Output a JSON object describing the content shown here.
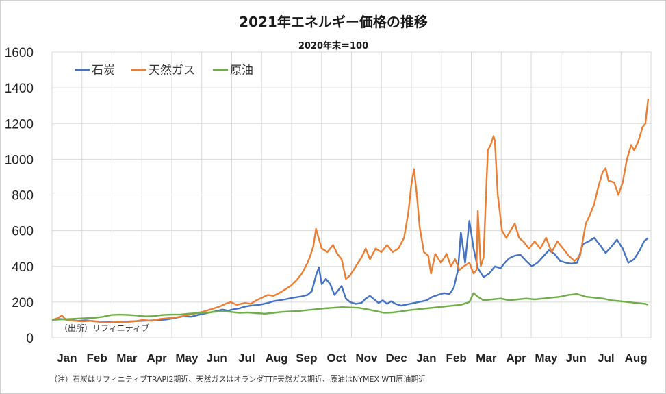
{
  "chart_data": {
    "type": "line",
    "title": "2021年エネルギー価格の推移",
    "subtitle": "2020年末＝100",
    "source": "（出所）リフィニティブ",
    "note": "（注）石炭はリフィニティブTRAPI2期近、天然ガスはオランダTTF天然ガス期近、原油はNYMEX WTI原油期近",
    "ylim": [
      0,
      1600
    ],
    "yticks": [
      "0",
      "200",
      "400",
      "600",
      "800",
      "1000",
      "1200",
      "1400",
      "1600"
    ],
    "xlim": [
      0,
      20
    ],
    "categories": [
      "Jan",
      "Feb",
      "Mar",
      "Apr",
      "May",
      "Jun",
      "Jul",
      "Aug",
      "Sep",
      "Oct",
      "Nov",
      "Dec",
      "Jan",
      "Feb",
      "Mar",
      "Apr",
      "May",
      "Jun",
      "Jul",
      "Aug"
    ],
    "grid": true,
    "legend_position": "top-left",
    "series": [
      {
        "name": "石炭",
        "color": "#4472C4",
        "points": [
          [
            0,
            100
          ],
          [
            0.3,
            105
          ],
          [
            0.6,
            100
          ],
          [
            0.9,
            95
          ],
          [
            1.2,
            98
          ],
          [
            1.5,
            92
          ],
          [
            1.8,
            90
          ],
          [
            2.2,
            88
          ],
          [
            2.5,
            90
          ],
          [
            2.8,
            92
          ],
          [
            3.2,
            95
          ],
          [
            3.6,
            98
          ],
          [
            4,
            102
          ],
          [
            4.3,
            110
          ],
          [
            4.6,
            120
          ],
          [
            4.9,
            118
          ],
          [
            5.2,
            130
          ],
          [
            5.5,
            140
          ],
          [
            5.8,
            150
          ],
          [
            6,
            158
          ],
          [
            6.2,
            152
          ],
          [
            6.4,
            160
          ],
          [
            6.6,
            165
          ],
          [
            6.8,
            175
          ],
          [
            7,
            180
          ],
          [
            7.3,
            185
          ],
          [
            7.6,
            195
          ],
          [
            7.8,
            205
          ],
          [
            8,
            210
          ],
          [
            8.2,
            215
          ],
          [
            8.5,
            225
          ],
          [
            8.8,
            232
          ],
          [
            9,
            240
          ],
          [
            9.15,
            260
          ],
          [
            9.3,
            350
          ],
          [
            9.4,
            395
          ],
          [
            9.5,
            300
          ],
          [
            9.65,
            330
          ],
          [
            9.8,
            300
          ],
          [
            9.95,
            240
          ],
          [
            10.05,
            260
          ],
          [
            10.2,
            290
          ],
          [
            10.35,
            220
          ],
          [
            10.5,
            200
          ],
          [
            10.7,
            190
          ],
          [
            10.9,
            195
          ],
          [
            11.05,
            220
          ],
          [
            11.2,
            235
          ],
          [
            11.35,
            215
          ],
          [
            11.5,
            195
          ],
          [
            11.65,
            210
          ],
          [
            11.8,
            190
          ],
          [
            11.95,
            205
          ],
          [
            12.1,
            190
          ],
          [
            12.3,
            180
          ],
          [
            12.6,
            190
          ],
          [
            12.9,
            200
          ],
          [
            13.2,
            210
          ],
          [
            13.4,
            230
          ],
          [
            13.6,
            240
          ],
          [
            13.8,
            250
          ],
          [
            14,
            245
          ],
          [
            14.15,
            280
          ],
          [
            14.3,
            380
          ],
          [
            14.4,
            590
          ],
          [
            14.55,
            420
          ],
          [
            14.7,
            655
          ],
          [
            14.85,
            500
          ],
          [
            15,
            390
          ],
          [
            15.2,
            340
          ],
          [
            15.4,
            360
          ],
          [
            15.6,
            400
          ],
          [
            15.8,
            390
          ],
          [
            15.95,
            420
          ],
          [
            16.1,
            445
          ],
          [
            16.3,
            460
          ],
          [
            16.5,
            465
          ],
          [
            16.7,
            430
          ],
          [
            16.9,
            400
          ],
          [
            17.1,
            420
          ],
          [
            17.3,
            455
          ],
          [
            17.5,
            490
          ],
          [
            17.7,
            470
          ],
          [
            17.9,
            430
          ],
          [
            18.1,
            420
          ],
          [
            18.3,
            415
          ],
          [
            18.5,
            420
          ],
          [
            18.7,
            525
          ],
          [
            18.9,
            540
          ],
          [
            19.1,
            560
          ],
          [
            19.3,
            520
          ],
          [
            19.5,
            475
          ],
          [
            19.7,
            510
          ],
          [
            19.9,
            550
          ],
          [
            20.1,
            500
          ],
          [
            20.3,
            420
          ],
          [
            20.5,
            440
          ],
          [
            20.7,
            490
          ],
          [
            20.85,
            540
          ],
          [
            21,
            560
          ]
        ]
      },
      {
        "name": "天然ガス",
        "color": "#ED7D31",
        "points": [
          [
            0,
            100
          ],
          [
            0.2,
            110
          ],
          [
            0.35,
            125
          ],
          [
            0.5,
            100
          ],
          [
            0.8,
            95
          ],
          [
            1.1,
            92
          ],
          [
            1.4,
            95
          ],
          [
            1.7,
            88
          ],
          [
            2,
            85
          ],
          [
            2.3,
            90
          ],
          [
            2.6,
            88
          ],
          [
            2.9,
            92
          ],
          [
            3.2,
            100
          ],
          [
            3.5,
            95
          ],
          [
            3.8,
            105
          ],
          [
            4.1,
            110
          ],
          [
            4.4,
            115
          ],
          [
            4.7,
            125
          ],
          [
            5,
            135
          ],
          [
            5.3,
            145
          ],
          [
            5.6,
            160
          ],
          [
            5.9,
            175
          ],
          [
            6.1,
            190
          ],
          [
            6.3,
            200
          ],
          [
            6.5,
            185
          ],
          [
            6.8,
            195
          ],
          [
            7,
            190
          ],
          [
            7.2,
            210
          ],
          [
            7.4,
            225
          ],
          [
            7.6,
            240
          ],
          [
            7.8,
            235
          ],
          [
            8,
            250
          ],
          [
            8.2,
            270
          ],
          [
            8.4,
            290
          ],
          [
            8.6,
            320
          ],
          [
            8.8,
            360
          ],
          [
            9,
            420
          ],
          [
            9.1,
            460
          ],
          [
            9.2,
            510
          ],
          [
            9.3,
            610
          ],
          [
            9.35,
            580
          ],
          [
            9.5,
            500
          ],
          [
            9.7,
            480
          ],
          [
            9.9,
            520
          ],
          [
            10.05,
            470
          ],
          [
            10.2,
            440
          ],
          [
            10.35,
            330
          ],
          [
            10.5,
            350
          ],
          [
            10.7,
            400
          ],
          [
            10.9,
            450
          ],
          [
            11.05,
            500
          ],
          [
            11.2,
            440
          ],
          [
            11.4,
            500
          ],
          [
            11.6,
            480
          ],
          [
            11.8,
            520
          ],
          [
            12,
            480
          ],
          [
            12.2,
            500
          ],
          [
            12.4,
            560
          ],
          [
            12.55,
            700
          ],
          [
            12.65,
            850
          ],
          [
            12.75,
            945
          ],
          [
            12.85,
            800
          ],
          [
            12.95,
            620
          ],
          [
            13.1,
            480
          ],
          [
            13.25,
            460
          ],
          [
            13.35,
            360
          ],
          [
            13.5,
            470
          ],
          [
            13.7,
            420
          ],
          [
            13.9,
            470
          ],
          [
            14.05,
            400
          ],
          [
            14.2,
            440
          ],
          [
            14.35,
            380
          ],
          [
            14.5,
            400
          ],
          [
            14.7,
            420
          ],
          [
            14.85,
            360
          ],
          [
            14.95,
            380
          ],
          [
            15,
            710
          ],
          [
            15.1,
            400
          ],
          [
            15.2,
            450
          ],
          [
            15.35,
            1050
          ],
          [
            15.45,
            1080
          ],
          [
            15.55,
            1130
          ],
          [
            15.6,
            1100
          ],
          [
            15.7,
            800
          ],
          [
            15.85,
            600
          ],
          [
            16,
            560
          ],
          [
            16.15,
            600
          ],
          [
            16.3,
            640
          ],
          [
            16.45,
            560
          ],
          [
            16.6,
            540
          ],
          [
            16.8,
            500
          ],
          [
            17,
            540
          ],
          [
            17.2,
            500
          ],
          [
            17.4,
            560
          ],
          [
            17.6,
            480
          ],
          [
            17.8,
            540
          ],
          [
            18,
            500
          ],
          [
            18.2,
            460
          ],
          [
            18.4,
            430
          ],
          [
            18.6,
            460
          ],
          [
            18.8,
            640
          ],
          [
            18.95,
            690
          ],
          [
            19.1,
            750
          ],
          [
            19.25,
            850
          ],
          [
            19.4,
            930
          ],
          [
            19.5,
            950
          ],
          [
            19.6,
            880
          ],
          [
            19.8,
            870
          ],
          [
            19.95,
            800
          ],
          [
            20.1,
            870
          ],
          [
            20.25,
            1000
          ],
          [
            20.4,
            1080
          ],
          [
            20.5,
            1050
          ],
          [
            20.65,
            1100
          ],
          [
            20.8,
            1180
          ],
          [
            20.9,
            1200
          ],
          [
            20.95,
            1270
          ],
          [
            21,
            1340
          ]
        ]
      },
      {
        "name": "原油",
        "color": "#70AD47",
        "points": [
          [
            0,
            100
          ],
          [
            0.3,
            103
          ],
          [
            0.6,
            105
          ],
          [
            0.9,
            108
          ],
          [
            1.2,
            110
          ],
          [
            1.5,
            112
          ],
          [
            1.8,
            118
          ],
          [
            2.1,
            128
          ],
          [
            2.4,
            130
          ],
          [
            2.7,
            128
          ],
          [
            3,
            125
          ],
          [
            3.3,
            120
          ],
          [
            3.6,
            122
          ],
          [
            3.9,
            128
          ],
          [
            4.2,
            130
          ],
          [
            4.5,
            130
          ],
          [
            4.8,
            135
          ],
          [
            5.1,
            138
          ],
          [
            5.4,
            140
          ],
          [
            5.7,
            145
          ],
          [
            6,
            148
          ],
          [
            6.3,
            145
          ],
          [
            6.6,
            140
          ],
          [
            6.9,
            142
          ],
          [
            7.2,
            138
          ],
          [
            7.5,
            135
          ],
          [
            7.8,
            140
          ],
          [
            8.1,
            145
          ],
          [
            8.4,
            148
          ],
          [
            8.7,
            150
          ],
          [
            9,
            155
          ],
          [
            9.3,
            160
          ],
          [
            9.6,
            165
          ],
          [
            9.9,
            168
          ],
          [
            10.2,
            172
          ],
          [
            10.5,
            170
          ],
          [
            10.8,
            168
          ],
          [
            11.1,
            160
          ],
          [
            11.4,
            150
          ],
          [
            11.7,
            140
          ],
          [
            12,
            142
          ],
          [
            12.3,
            148
          ],
          [
            12.6,
            155
          ],
          [
            12.9,
            160
          ],
          [
            13.2,
            165
          ],
          [
            13.5,
            170
          ],
          [
            13.8,
            175
          ],
          [
            14.1,
            180
          ],
          [
            14.4,
            185
          ],
          [
            14.7,
            200
          ],
          [
            14.85,
            250
          ],
          [
            15,
            230
          ],
          [
            15.2,
            210
          ],
          [
            15.5,
            215
          ],
          [
            15.8,
            220
          ],
          [
            16.1,
            210
          ],
          [
            16.4,
            215
          ],
          [
            16.7,
            220
          ],
          [
            17,
            215
          ],
          [
            17.3,
            220
          ],
          [
            17.6,
            225
          ],
          [
            17.9,
            230
          ],
          [
            18.2,
            240
          ],
          [
            18.5,
            245
          ],
          [
            18.8,
            230
          ],
          [
            19.1,
            225
          ],
          [
            19.4,
            220
          ],
          [
            19.7,
            210
          ],
          [
            20,
            205
          ],
          [
            20.3,
            200
          ],
          [
            20.6,
            195
          ],
          [
            20.9,
            190
          ],
          [
            21,
            185
          ]
        ]
      }
    ]
  }
}
